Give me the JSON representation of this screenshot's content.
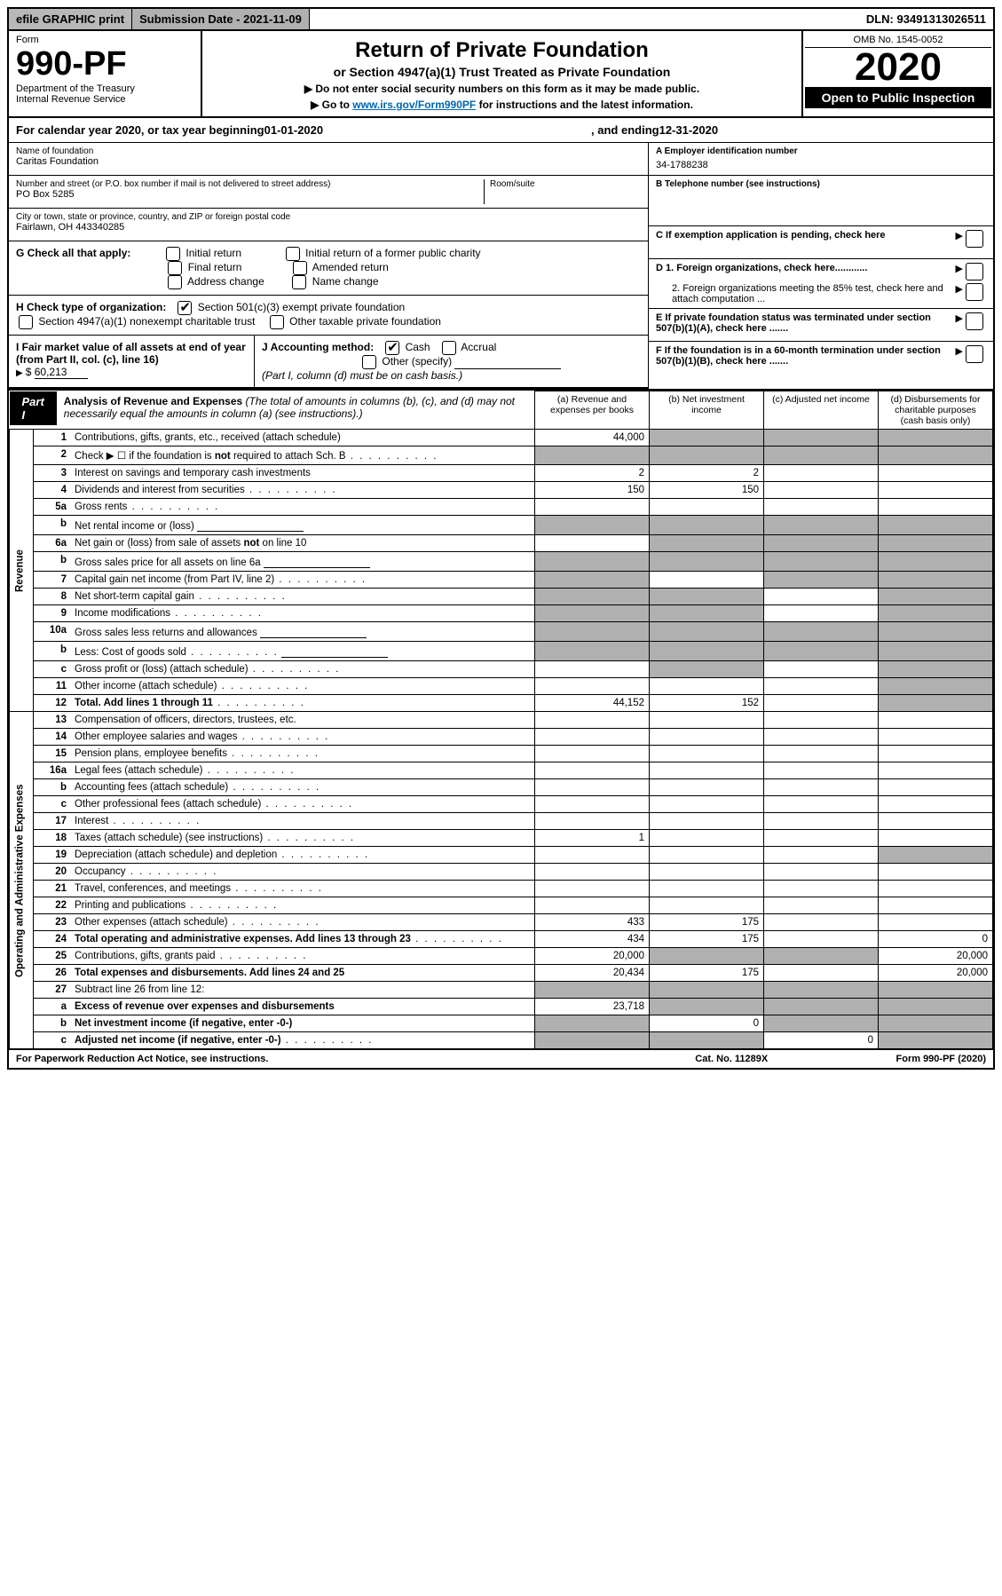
{
  "topbar": {
    "efile": "efile GRAPHIC print",
    "submission": "Submission Date - 2021-11-09",
    "dln": "DLN: 93491313026511"
  },
  "header": {
    "form_word": "Form",
    "form_no": "990-PF",
    "dept": "Department of the Treasury",
    "irs": "Internal Revenue Service",
    "title": "Return of Private Foundation",
    "subtitle": "or Section 4947(a)(1) Trust Treated as Private Foundation",
    "instr1": "▶ Do not enter social security numbers on this form as it may be made public.",
    "instr2_pre": "▶ Go to ",
    "instr2_link": "www.irs.gov/Form990PF",
    "instr2_post": " for instructions and the latest information.",
    "omb": "OMB No. 1545-0052",
    "year": "2020",
    "open": "Open to Public Inspection"
  },
  "calyear": {
    "pre": "For calendar year 2020, or tax year beginning ",
    "begin": "01-01-2020",
    "mid": ", and ending ",
    "end": "12-31-2020"
  },
  "info": {
    "name_label": "Name of foundation",
    "name": "Caritas Foundation",
    "addr_label": "Number and street (or P.O. box number if mail is not delivered to street address)",
    "addr": "PO Box 5285",
    "room_label": "Room/suite",
    "city_label": "City or town, state or province, country, and ZIP or foreign postal code",
    "city": "Fairlawn, OH  443340285",
    "ein_label": "A Employer identification number",
    "ein": "34-1788238",
    "tel_label": "B Telephone number (see instructions)",
    "c_label": "C If exemption application is pending, check here",
    "d1": "D 1. Foreign organizations, check here............",
    "d2": "2. Foreign organizations meeting the 85% test, check here and attach computation ...",
    "e": "E  If private foundation status was terminated under section 507(b)(1)(A), check here .......",
    "f": "F  If the foundation is in a 60-month termination under section 507(b)(1)(B), check here .......",
    "g_label": "G Check all that apply:",
    "g_opts": [
      "Initial return",
      "Final return",
      "Address change",
      "Initial return of a former public charity",
      "Amended return",
      "Name change"
    ],
    "h_label": "H Check type of organization:",
    "h1": "Section 501(c)(3) exempt private foundation",
    "h2": "Section 4947(a)(1) nonexempt charitable trust",
    "h3": "Other taxable private foundation",
    "i_label": "I Fair market value of all assets at end of year (from Part II, col. (c), line 16)",
    "i_val": "60,213",
    "j_label": "J Accounting method:",
    "j_cash": "Cash",
    "j_accrual": "Accrual",
    "j_other": "Other (specify)",
    "j_note": "(Part I, column (d) must be on cash basis.)"
  },
  "part1": {
    "tag": "Part I",
    "title": "Analysis of Revenue and Expenses",
    "title_note": " (The total of amounts in columns (b), (c), and (d) may not necessarily equal the amounts in column (a) (see instructions).)",
    "cols": {
      "a": "(a) Revenue and expenses per books",
      "b": "(b) Net investment income",
      "c": "(c) Adjusted net income",
      "d": "(d) Disbursements for charitable purposes (cash basis only)"
    }
  },
  "sections": {
    "revenue": "Revenue",
    "expenses": "Operating and Administrative Expenses"
  },
  "lines": [
    {
      "n": "1",
      "d": "Contributions, gifts, grants, etc., received (attach schedule)",
      "a": "44,000",
      "shade": "bcd"
    },
    {
      "n": "2",
      "d": "Check ▶ ☐ if the foundation is not required to attach Sch. B",
      "dots": true,
      "shade": "abcd"
    },
    {
      "n": "3",
      "d": "Interest on savings and temporary cash investments",
      "a": "2",
      "b": "2"
    },
    {
      "n": "4",
      "d": "Dividends and interest from securities",
      "dots": true,
      "a": "150",
      "b": "150"
    },
    {
      "n": "5a",
      "d": "Gross rents",
      "dots": true
    },
    {
      "n": "b",
      "d": "Net rental income or (loss)",
      "line": true,
      "shade": "abcd"
    },
    {
      "n": "6a",
      "d": "Net gain or (loss) from sale of assets not on line 10",
      "shade": "bcd"
    },
    {
      "n": "b",
      "d": "Gross sales price for all assets on line 6a",
      "line": true,
      "shade": "abcd"
    },
    {
      "n": "7",
      "d": "Capital gain net income (from Part IV, line 2)",
      "dots": true,
      "shade": "acd"
    },
    {
      "n": "8",
      "d": "Net short-term capital gain",
      "dots": true,
      "shade": "abd"
    },
    {
      "n": "9",
      "d": "Income modifications",
      "dots": true,
      "shade": "abd"
    },
    {
      "n": "10a",
      "d": "Gross sales less returns and allowances",
      "line": true,
      "shade": "abcd"
    },
    {
      "n": "b",
      "d": "Less: Cost of goods sold",
      "dots": true,
      "line": true,
      "shade": "abcd"
    },
    {
      "n": "c",
      "d": "Gross profit or (loss) (attach schedule)",
      "dots": true,
      "shade": "bd"
    },
    {
      "n": "11",
      "d": "Other income (attach schedule)",
      "dots": true,
      "shade": "d"
    },
    {
      "n": "12",
      "d": "Total. Add lines 1 through 11",
      "dots": true,
      "bold": true,
      "a": "44,152",
      "b": "152",
      "shade": "d"
    },
    {
      "n": "13",
      "d": "Compensation of officers, directors, trustees, etc."
    },
    {
      "n": "14",
      "d": "Other employee salaries and wages",
      "dots": true
    },
    {
      "n": "15",
      "d": "Pension plans, employee benefits",
      "dots": true
    },
    {
      "n": "16a",
      "d": "Legal fees (attach schedule)",
      "dots": true
    },
    {
      "n": "b",
      "d": "Accounting fees (attach schedule)",
      "dots": true
    },
    {
      "n": "c",
      "d": "Other professional fees (attach schedule)",
      "dots": true
    },
    {
      "n": "17",
      "d": "Interest",
      "dots": true
    },
    {
      "n": "18",
      "d": "Taxes (attach schedule) (see instructions)",
      "dots": true,
      "a": "1"
    },
    {
      "n": "19",
      "d": "Depreciation (attach schedule) and depletion",
      "dots": true,
      "shade": "d"
    },
    {
      "n": "20",
      "d": "Occupancy",
      "dots": true
    },
    {
      "n": "21",
      "d": "Travel, conferences, and meetings",
      "dots": true
    },
    {
      "n": "22",
      "d": "Printing and publications",
      "dots": true
    },
    {
      "n": "23",
      "d": "Other expenses (attach schedule)",
      "dots": true,
      "a": "433",
      "b": "175"
    },
    {
      "n": "24",
      "d": "Total operating and administrative expenses. Add lines 13 through 23",
      "dots": true,
      "bold": true,
      "a": "434",
      "b": "175",
      "dval": "0"
    },
    {
      "n": "25",
      "d": "Contributions, gifts, grants paid",
      "dots": true,
      "a": "20,000",
      "dval": "20,000",
      "shade": "bc"
    },
    {
      "n": "26",
      "d": "Total expenses and disbursements. Add lines 24 and 25",
      "bold": true,
      "a": "20,434",
      "b": "175",
      "dval": "20,000"
    },
    {
      "n": "27",
      "d": "Subtract line 26 from line 12:",
      "shade": "abcd"
    },
    {
      "n": "a",
      "d": "Excess of revenue over expenses and disbursements",
      "bold": true,
      "a": "23,718",
      "shade": "bcd"
    },
    {
      "n": "b",
      "d": "Net investment income (if negative, enter -0-)",
      "bold": true,
      "b": "0",
      "shade": "acd"
    },
    {
      "n": "c",
      "d": "Adjusted net income (if negative, enter -0-)",
      "bold": true,
      "dots": true,
      "c": "0",
      "shade": "abd"
    }
  ],
  "footer": {
    "left": "For Paperwork Reduction Act Notice, see instructions.",
    "mid": "Cat. No. 11289X",
    "right": "Form 990-PF (2020)"
  }
}
